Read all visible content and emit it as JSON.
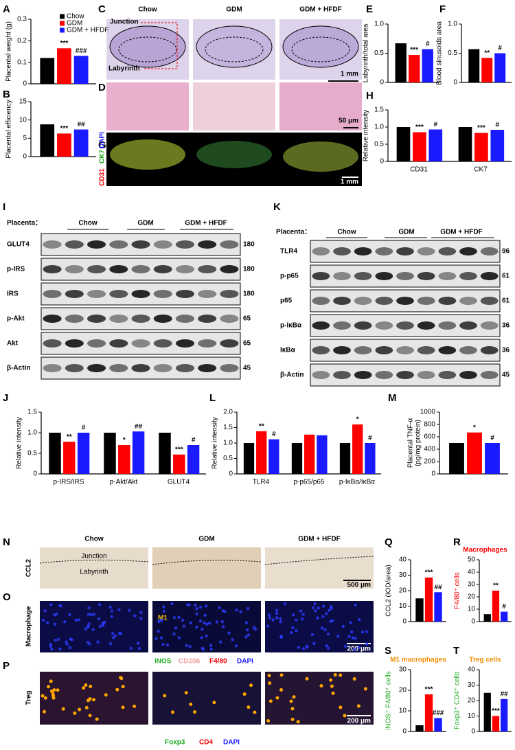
{
  "panel_letters": [
    "A",
    "B",
    "C",
    "D",
    "E",
    "F",
    "G",
    "H",
    "I",
    "J",
    "K",
    "L",
    "M",
    "N",
    "O",
    "P",
    "Q",
    "R",
    "S",
    "T"
  ],
  "histology": {
    "groups": [
      "Chow",
      "GDM",
      "GDM + HFDF"
    ],
    "junction": "Junction",
    "labyrinth": "Labyrinth",
    "scale_c": "1 mm",
    "scale_d": "50 μm",
    "stain_g": [
      "CD31",
      "CK7",
      "DAPI"
    ],
    "scale_g": "1 mm"
  },
  "ihc": {
    "groups": [
      "Chow",
      "GDM",
      "GDM + HFDF"
    ],
    "ccl2": "CCL2",
    "junction": "Junction",
    "labyrinth": "Labyrinth",
    "scale_n": "500 μm",
    "macrophage": "Macrophage",
    "m1": "M1",
    "scale_o": "200 μm",
    "stain_o": [
      "iNOS",
      "CD206",
      "F4/80",
      "DAPI"
    ],
    "treg": "Treg",
    "scale_p": "200 μm",
    "stain_p": [
      "Foxp3",
      "CD4",
      "DAPI"
    ]
  },
  "blot_i": {
    "header": "Placenta：",
    "groups": [
      "Chow",
      "GDM",
      "GDM + HFDF"
    ],
    "rows": [
      {
        "label": "GLUT4",
        "kda": 180
      },
      {
        "label": "p-IRS",
        "kda": 180
      },
      {
        "label": "IRS",
        "kda": 180
      },
      {
        "label": "p-Akt",
        "kda": 65
      },
      {
        "label": "Akt",
        "kda": 65
      },
      {
        "label": "β-Actin",
        "kda": 45
      }
    ]
  },
  "blot_k": {
    "header": "Placenta：",
    "groups": [
      "Chow",
      "GDM",
      "GDM + HFDF"
    ],
    "rows": [
      {
        "label": "TLR4",
        "kda": 96
      },
      {
        "label": "p-p65",
        "kda": 61
      },
      {
        "label": "p65",
        "kda": 61
      },
      {
        "label": "p-IκBα",
        "kda": 36
      },
      {
        "label": "IκBα",
        "kda": 36
      },
      {
        "label": "β-Actin",
        "kda": 45
      }
    ]
  },
  "chart_data": [
    {
      "type": "bar",
      "ylabel": "Placental weight (g)",
      "ylim": [
        0,
        0.3
      ],
      "yticks": [
        0,
        0.1,
        0.2,
        0.3
      ],
      "legend": "top-right",
      "series": [
        {
          "name": "Chow",
          "color": "#000000",
          "values": [
            0.12
          ]
        },
        {
          "name": "GDM",
          "color": "#ff0000",
          "values": [
            0.165
          ],
          "annotations": [
            "***"
          ]
        },
        {
          "name": "GDM + HFDF",
          "color": "#1a1aff",
          "values": [
            0.13
          ],
          "annotations": [
            "###"
          ]
        }
      ]
    },
    {
      "type": "bar",
      "ylabel": "Placental efficiency",
      "ylim": [
        0,
        15
      ],
      "yticks": [
        0,
        5,
        10,
        15
      ],
      "series": [
        {
          "color": "#000000",
          "values": [
            8.8
          ]
        },
        {
          "color": "#ff0000",
          "values": [
            6.3
          ],
          "annotations": [
            "***"
          ]
        },
        {
          "color": "#1a1aff",
          "values": [
            7.4
          ],
          "annotations": [
            "##"
          ]
        }
      ]
    },
    {
      "type": "bar",
      "ylabel": "Labyrinth/total area",
      "ylim": [
        0,
        1
      ],
      "yticks": [
        0,
        0.5,
        {
          "value": 1,
          "label": "1.0"
        }
      ],
      "series": [
        {
          "color": "#000000",
          "values": [
            0.67
          ]
        },
        {
          "color": "#ff0000",
          "values": [
            0.47
          ],
          "annotations": [
            "***"
          ]
        },
        {
          "color": "#1a1aff",
          "values": [
            0.57
          ],
          "annotations": [
            "#"
          ]
        }
      ]
    },
    {
      "type": "bar",
      "ylabel": "Blood sinusoids area",
      "ylim": [
        0,
        1
      ],
      "yticks": [
        0,
        0.5,
        {
          "value": 1,
          "label": "1.0"
        }
      ],
      "series": [
        {
          "color": "#000000",
          "values": [
            0.57
          ]
        },
        {
          "color": "#ff0000",
          "values": [
            0.42
          ],
          "annotations": [
            "**"
          ]
        },
        {
          "color": "#1a1aff",
          "values": [
            0.5
          ],
          "annotations": [
            "#"
          ]
        }
      ]
    },
    {
      "type": "bar",
      "ylabel": "Relative intensity",
      "ylim": [
        0,
        1.5
      ],
      "yticks": [
        0,
        0.5,
        {
          "value": 1,
          "label": "1.0"
        },
        1.5
      ],
      "categories": [
        "CD31",
        "CK7"
      ],
      "series": [
        {
          "color": "#000000",
          "values": [
            1.0,
            1.0
          ]
        },
        {
          "color": "#ff0000",
          "values": [
            0.85,
            0.83
          ],
          "annotations": [
            "***",
            "***"
          ]
        },
        {
          "color": "#1a1aff",
          "values": [
            0.93,
            0.92
          ],
          "annotations": [
            "#",
            "#"
          ]
        }
      ]
    },
    {
      "type": "bar",
      "ylabel": "Relative intensity",
      "ylim": [
        0,
        1.5
      ],
      "yticks": [
        0,
        0.5,
        {
          "value": 1,
          "label": "1.0"
        },
        1.5
      ],
      "categories": [
        "p-IRS/IRS",
        "p-Akt/Akt",
        "GLUT4"
      ],
      "series": [
        {
          "color": "#000000",
          "values": [
            1.0,
            1.0,
            1.0
          ]
        },
        {
          "color": "#ff0000",
          "values": [
            0.78,
            0.7,
            0.47
          ],
          "annotations": [
            "**",
            "*",
            "***"
          ]
        },
        {
          "color": "#1a1aff",
          "values": [
            1.0,
            1.03,
            0.7
          ],
          "annotations": [
            "#",
            "##",
            "#"
          ]
        }
      ]
    },
    {
      "type": "bar",
      "ylabel": "Relative intensity",
      "ylim": [
        0,
        2
      ],
      "yticks": [
        0,
        0.5,
        {
          "value": 1,
          "label": "1.0"
        },
        1.5,
        {
          "value": 2,
          "label": "2.0"
        }
      ],
      "categories": [
        "TLR4",
        "p-p65/p65",
        "p-IκBα/IκBα"
      ],
      "series": [
        {
          "color": "#000000",
          "values": [
            1.0,
            1.0,
            1.0
          ]
        },
        {
          "color": "#ff0000",
          "values": [
            1.38,
            1.27,
            1.6
          ],
          "annotations": [
            "**",
            null,
            "*"
          ]
        },
        {
          "color": "#1a1aff",
          "values": [
            1.12,
            1.25,
            1.0
          ],
          "annotations": [
            "#",
            null,
            "#"
          ]
        }
      ]
    },
    {
      "type": "bar",
      "ylabel": [
        "Placental TNF-α",
        "(pg/mg protein)"
      ],
      "ylim": [
        0,
        1000
      ],
      "yticks": [
        0,
        200,
        400,
        600,
        800,
        1000
      ],
      "series": [
        {
          "color": "#000000",
          "values": [
            500
          ]
        },
        {
          "color": "#ff0000",
          "values": [
            670
          ],
          "annotations": [
            "*"
          ]
        },
        {
          "color": "#1a1aff",
          "values": [
            500
          ],
          "annotations": [
            "#"
          ]
        }
      ]
    },
    {
      "type": "bar",
      "ylabel": "CCL2 (IOD/area)",
      "ylim": [
        0,
        40
      ],
      "yticks": [
        0,
        10,
        20,
        30,
        40
      ],
      "series": [
        {
          "color": "#000000",
          "values": [
            15
          ]
        },
        {
          "color": "#ff0000",
          "values": [
            28.5
          ],
          "annotations": [
            "***"
          ]
        },
        {
          "color": "#1a1aff",
          "values": [
            19
          ],
          "annotations": [
            "##"
          ]
        }
      ]
    },
    {
      "type": "bar",
      "title": "Macrophages",
      "title_color": "#ff0000",
      "ylabel": "F4/80⁺ cells",
      "ylabel_color": "#ff0000",
      "ylim": [
        0,
        50
      ],
      "yticks": [
        0,
        10,
        20,
        30,
        40,
        50
      ],
      "series": [
        {
          "color": "#000000",
          "values": [
            6
          ]
        },
        {
          "color": "#ff0000",
          "values": [
            25
          ],
          "annotations": [
            "**"
          ]
        },
        {
          "color": "#1a1aff",
          "values": [
            8
          ],
          "annotations": [
            "#"
          ]
        }
      ]
    },
    {
      "type": "bar",
      "title": "M1 macrophages",
      "title_color": "#f08c00",
      "ylabel": "iNOS⁺ F4/80⁺ cells",
      "ylabel_color": "#22aa22",
      "ylim": [
        0,
        30
      ],
      "yticks": [
        0,
        10,
        20,
        30
      ],
      "series": [
        {
          "color": "#000000",
          "values": [
            3
          ]
        },
        {
          "color": "#ff0000",
          "values": [
            18
          ],
          "annotations": [
            "***"
          ]
        },
        {
          "color": "#1a1aff",
          "values": [
            6.5
          ],
          "annotations": [
            "###"
          ]
        }
      ]
    },
    {
      "type": "bar",
      "title": "Treg cells",
      "title_color": "#f08c00",
      "ylabel": "Foxp3⁺ CD4⁺ cells",
      "ylabel_color": "#22aa22",
      "ylim": [
        0,
        40
      ],
      "yticks": [
        0,
        10,
        20,
        30,
        40
      ],
      "series": [
        {
          "color": "#000000",
          "values": [
            25
          ]
        },
        {
          "color": "#ff0000",
          "values": [
            10
          ],
          "annotations": [
            "***"
          ]
        },
        {
          "color": "#1a1aff",
          "values": [
            21
          ],
          "annotations": [
            "##"
          ]
        }
      ]
    }
  ]
}
